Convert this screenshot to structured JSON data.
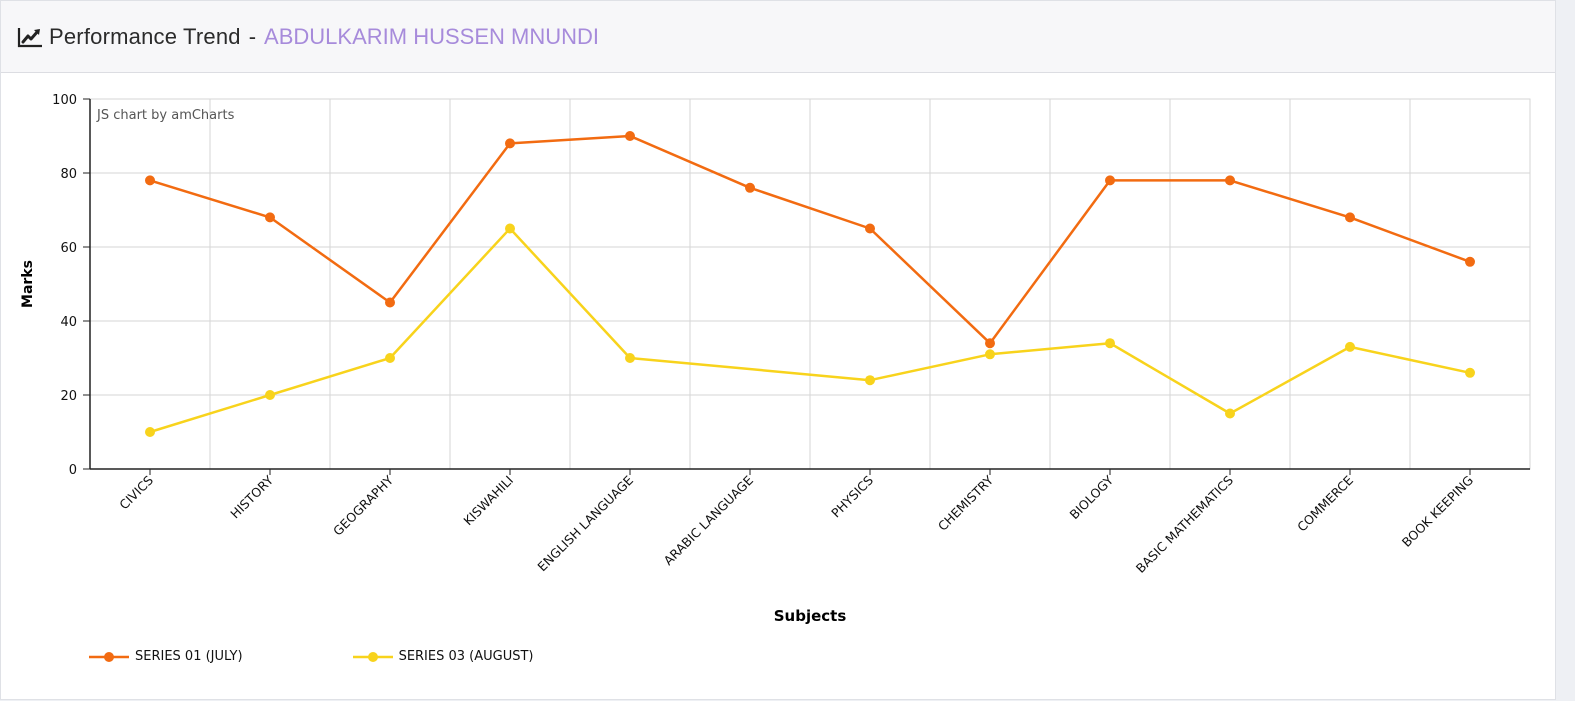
{
  "header": {
    "icon": "line-chart-icon",
    "title": "Performance Trend",
    "separator": "-",
    "student_name": "ABDULKARIM HUSSEN MNUNDI"
  },
  "watermark": "JS chart by amCharts",
  "colors": {
    "series_july": "#f26b11",
    "series_august": "#f8d31c",
    "accent_name": "#a78bdb"
  },
  "chart_data": {
    "type": "line",
    "title": "Performance Trend - ABDULKARIM HUSSEN MNUNDI",
    "xlabel": "Subjects",
    "ylabel": "Marks",
    "ylim": [
      0,
      100
    ],
    "yticks": [
      0,
      20,
      40,
      60,
      80,
      100
    ],
    "grid": true,
    "legend_position": "bottom-left",
    "categories": [
      "CIVICS",
      "HISTORY",
      "GEOGRAPHY",
      "KISWAHILI",
      "ENGLISH LANGUAGE",
      "ARABIC LANGUAGE",
      "PHYSICS",
      "CHEMISTRY",
      "BIOLOGY",
      "BASIC MATHEMATICS",
      "COMMERCE",
      "BOOK KEEPING"
    ],
    "series": [
      {
        "name": "SERIES 01 (JULY)",
        "color": "#f26b11",
        "values": [
          78,
          68,
          45,
          88,
          90,
          76,
          65,
          34,
          78,
          78,
          68,
          56
        ]
      },
      {
        "name": "SERIES 03 (AUGUST)",
        "color": "#f8d31c",
        "values": [
          10,
          20,
          30,
          65,
          30,
          null,
          24,
          31,
          34,
          15,
          33,
          26
        ]
      }
    ]
  }
}
